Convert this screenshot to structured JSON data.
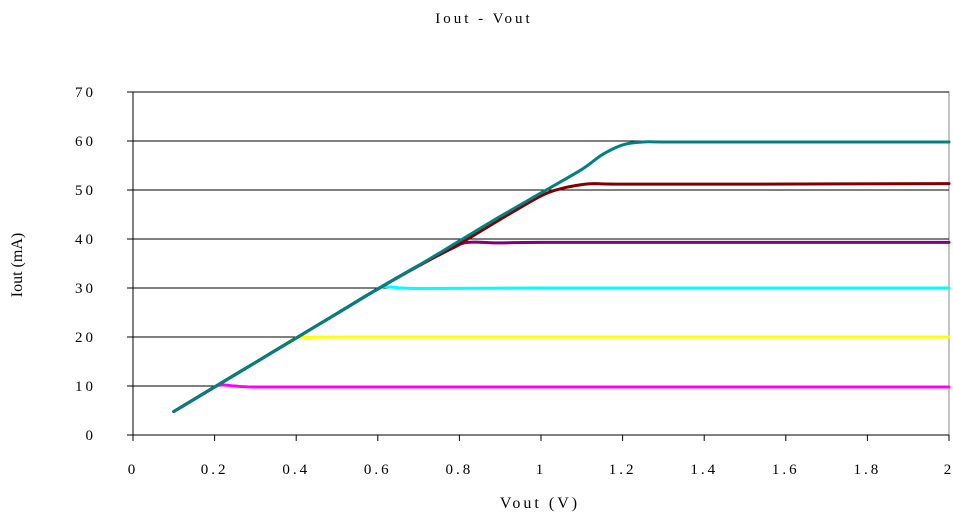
{
  "chart_data": {
    "type": "line",
    "title": "Iout - Vout",
    "xlabel": "Vout (V)",
    "ylabel": "Iout (mA)",
    "xlim": [
      0,
      2
    ],
    "ylim": [
      0,
      70
    ],
    "x_ticks": [
      0,
      0.2,
      0.4,
      0.6,
      0.8,
      1,
      1.2,
      1.4,
      1.6,
      1.8,
      2
    ],
    "x_tick_labels": [
      "0",
      "0.2",
      "0.4",
      "0.6",
      "0.8",
      "1",
      "1.2",
      "1.4",
      "1.6",
      "1.8",
      "2"
    ],
    "y_ticks": [
      0,
      10,
      20,
      30,
      40,
      50,
      60,
      70
    ],
    "y_tick_labels": [
      "0",
      "10",
      "20",
      "30",
      "40",
      "50",
      "60",
      "70"
    ],
    "grid": "horizontal",
    "legend": "none",
    "series": [
      {
        "color": "#ff00ff",
        "points": [
          [
            0.1,
            4.8
          ],
          [
            0.15,
            7.3
          ],
          [
            0.2,
            9.8
          ],
          [
            0.22,
            10.2
          ],
          [
            0.25,
            10.0
          ],
          [
            0.3,
            9.8
          ],
          [
            0.5,
            9.8
          ],
          [
            1.0,
            9.8
          ],
          [
            1.5,
            9.8
          ],
          [
            2.0,
            9.8
          ]
        ]
      },
      {
        "color": "#ffff00",
        "points": [
          [
            0.1,
            4.8
          ],
          [
            0.2,
            9.8
          ],
          [
            0.3,
            14.8
          ],
          [
            0.35,
            17.3
          ],
          [
            0.4,
            19.8
          ],
          [
            0.43,
            19.9
          ],
          [
            0.5,
            20.0
          ],
          [
            1.0,
            20.0
          ],
          [
            1.5,
            20.0
          ],
          [
            2.0,
            20.0
          ]
        ]
      },
      {
        "color": "#00ffff",
        "points": [
          [
            0.1,
            4.8
          ],
          [
            0.2,
            9.8
          ],
          [
            0.3,
            14.8
          ],
          [
            0.4,
            19.8
          ],
          [
            0.5,
            24.8
          ],
          [
            0.6,
            29.8
          ],
          [
            0.63,
            30.2
          ],
          [
            0.7,
            29.9
          ],
          [
            1.0,
            30.0
          ],
          [
            1.5,
            30.0
          ],
          [
            2.0,
            30.0
          ]
        ]
      },
      {
        "color": "#800080",
        "points": [
          [
            0.1,
            4.8
          ],
          [
            0.2,
            9.8
          ],
          [
            0.3,
            14.8
          ],
          [
            0.4,
            19.8
          ],
          [
            0.5,
            24.8
          ],
          [
            0.6,
            29.8
          ],
          [
            0.7,
            34.6
          ],
          [
            0.78,
            38.0
          ],
          [
            0.82,
            39.3
          ],
          [
            0.9,
            39.2
          ],
          [
            1.0,
            39.3
          ],
          [
            1.5,
            39.3
          ],
          [
            2.0,
            39.3
          ]
        ]
      },
      {
        "color": "#800000",
        "points": [
          [
            0.1,
            4.8
          ],
          [
            0.2,
            9.8
          ],
          [
            0.3,
            14.8
          ],
          [
            0.4,
            19.8
          ],
          [
            0.5,
            24.8
          ],
          [
            0.6,
            29.8
          ],
          [
            0.7,
            34.5
          ],
          [
            0.8,
            39.0
          ],
          [
            0.9,
            44.0
          ],
          [
            1.0,
            48.8
          ],
          [
            1.05,
            50.3
          ],
          [
            1.1,
            51.1
          ],
          [
            1.13,
            51.3
          ],
          [
            1.2,
            51.2
          ],
          [
            1.5,
            51.2
          ],
          [
            2.0,
            51.3
          ]
        ]
      },
      {
        "color": "#008080",
        "points": [
          [
            0.1,
            4.8
          ],
          [
            0.2,
            9.8
          ],
          [
            0.3,
            14.8
          ],
          [
            0.4,
            19.8
          ],
          [
            0.5,
            24.8
          ],
          [
            0.6,
            29.8
          ],
          [
            0.7,
            34.6
          ],
          [
            0.8,
            39.6
          ],
          [
            0.9,
            44.6
          ],
          [
            1.0,
            49.4
          ],
          [
            1.1,
            54.2
          ],
          [
            1.15,
            57.2
          ],
          [
            1.2,
            59.2
          ],
          [
            1.25,
            59.8
          ],
          [
            1.3,
            59.8
          ],
          [
            1.5,
            59.8
          ],
          [
            2.0,
            59.8
          ]
        ]
      }
    ]
  }
}
